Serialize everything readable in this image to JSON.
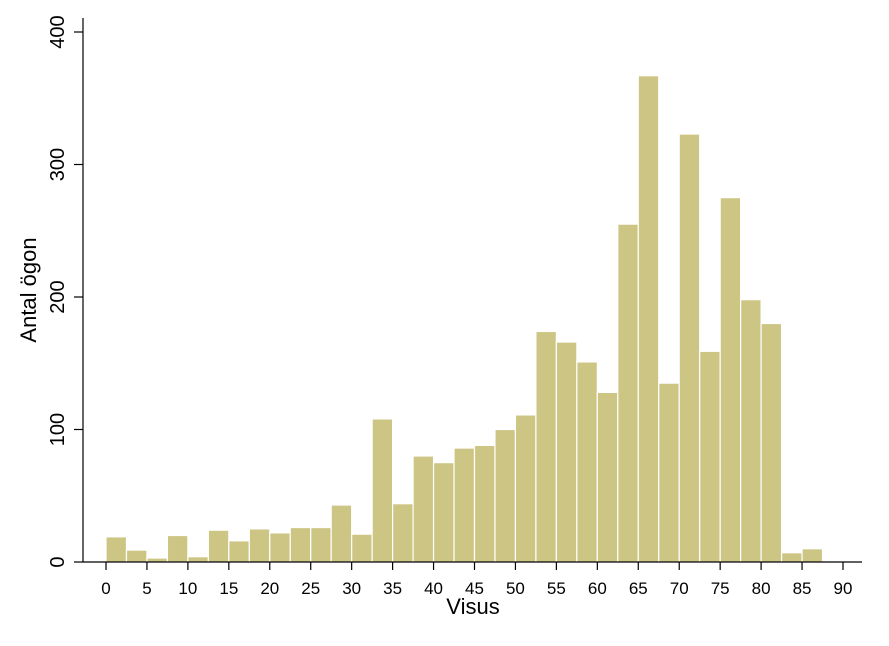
{
  "chart_data": {
    "type": "bar",
    "title": "",
    "xlabel": "Visus",
    "ylabel": "Antal ögon",
    "xlim": [
      -2,
      92
    ],
    "ylim": [
      0,
      400
    ],
    "bin_width": 2.5,
    "xticks": [
      0,
      5,
      10,
      15,
      20,
      25,
      30,
      35,
      40,
      45,
      50,
      55,
      60,
      65,
      70,
      75,
      80,
      85,
      90
    ],
    "yticks": [
      0,
      100,
      200,
      300,
      400
    ],
    "grid": false,
    "legend": "none",
    "bar_color": "#cdc584",
    "bins": [
      {
        "x": 0,
        "value": 19
      },
      {
        "x": 2.5,
        "value": 9
      },
      {
        "x": 5,
        "value": 3
      },
      {
        "x": 7.5,
        "value": 20
      },
      {
        "x": 10,
        "value": 4
      },
      {
        "x": 12.5,
        "value": 24
      },
      {
        "x": 15,
        "value": 16
      },
      {
        "x": 17.5,
        "value": 25
      },
      {
        "x": 20,
        "value": 22
      },
      {
        "x": 22.5,
        "value": 26
      },
      {
        "x": 25,
        "value": 26
      },
      {
        "x": 27.5,
        "value": 43
      },
      {
        "x": 30,
        "value": 21
      },
      {
        "x": 32.5,
        "value": 108
      },
      {
        "x": 35,
        "value": 44
      },
      {
        "x": 37.5,
        "value": 80
      },
      {
        "x": 40,
        "value": 75
      },
      {
        "x": 42.5,
        "value": 86
      },
      {
        "x": 45,
        "value": 88
      },
      {
        "x": 47.5,
        "value": 100
      },
      {
        "x": 50,
        "value": 111
      },
      {
        "x": 52.5,
        "value": 174
      },
      {
        "x": 55,
        "value": 166
      },
      {
        "x": 57.5,
        "value": 151
      },
      {
        "x": 60,
        "value": 128
      },
      {
        "x": 62.5,
        "value": 255
      },
      {
        "x": 65,
        "value": 367
      },
      {
        "x": 67.5,
        "value": 135
      },
      {
        "x": 70,
        "value": 323
      },
      {
        "x": 72.5,
        "value": 159
      },
      {
        "x": 75,
        "value": 275
      },
      {
        "x": 77.5,
        "value": 198
      },
      {
        "x": 80,
        "value": 180
      },
      {
        "x": 82.5,
        "value": 7
      },
      {
        "x": 85,
        "value": 10
      }
    ]
  }
}
